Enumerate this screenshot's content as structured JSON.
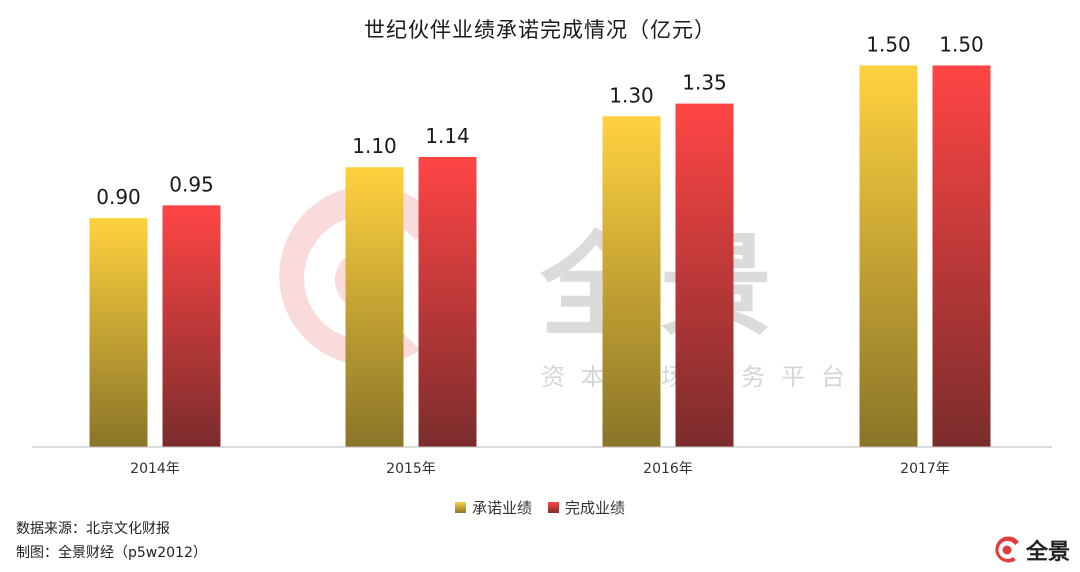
{
  "watermark": {
    "brand": "全景",
    "slogan": "资本市场服务平台"
  },
  "footer": {
    "source": "数据来源：北京文化财报",
    "credit": "制图：全景财经（p5w2012）",
    "logo_text": "全景"
  },
  "colors": {
    "promised_top": "#ffd23f",
    "promised_bottom": "#8a7428",
    "actual_top": "#ff4545",
    "actual_bottom": "#7b2c2c",
    "axis": "#bbbbbb"
  },
  "chart_data": {
    "type": "bar",
    "title": "世纪伙伴业绩承诺完成情况（亿元）",
    "categories": [
      "2014年",
      "2015年",
      "2016年",
      "2017年"
    ],
    "series": [
      {
        "name": "承诺业绩",
        "values": [
          0.9,
          1.1,
          1.3,
          1.5
        ],
        "labels": [
          "0.90",
          "1.10",
          "1.30",
          "1.50"
        ]
      },
      {
        "name": "完成业绩",
        "values": [
          0.95,
          1.14,
          1.35,
          1.5
        ],
        "labels": [
          "0.95",
          "1.14",
          "1.35",
          "1.50"
        ]
      }
    ],
    "ylim": [
      0,
      1.6
    ],
    "grid": false,
    "legend_position": "bottom"
  }
}
